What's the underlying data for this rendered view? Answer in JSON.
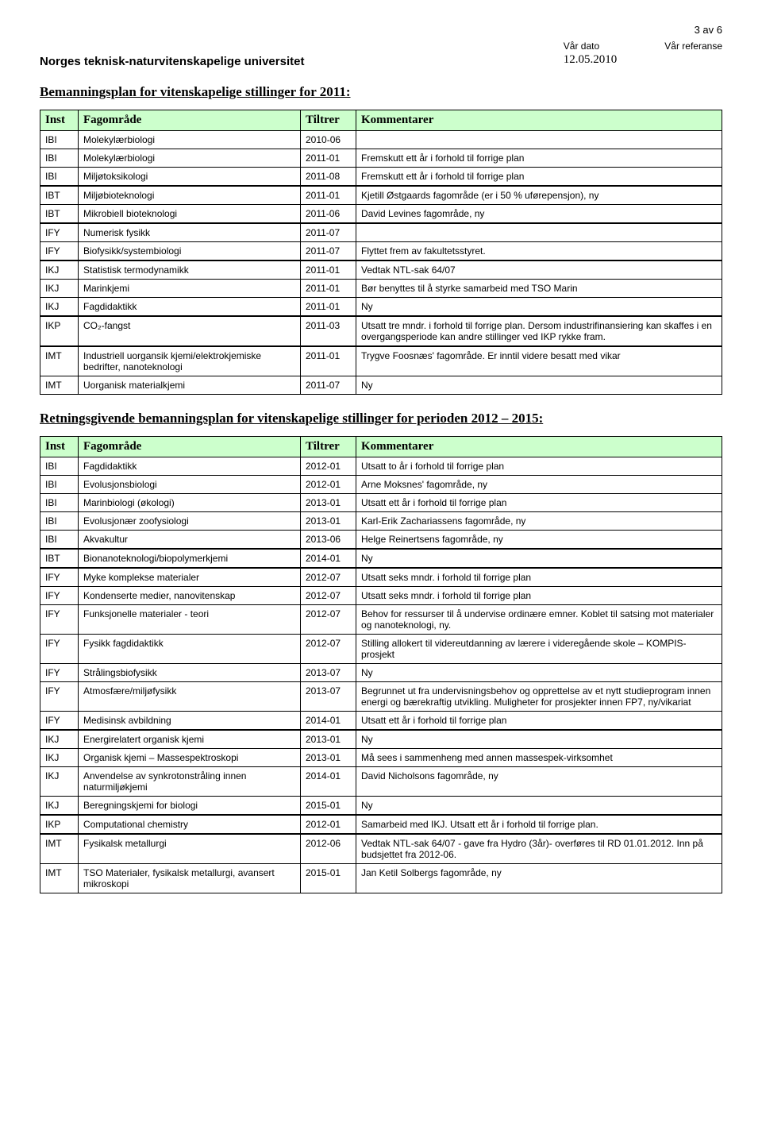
{
  "header": {
    "page_number": "3 av 6",
    "org_name": "Norges teknisk-naturvitenskapelige universitet",
    "date_label": "Vår dato",
    "date_value": "12.05.2010",
    "ref_label": "Vår referanse",
    "ref_value": ""
  },
  "section1": {
    "title": "Bemanningsplan for vitenskapelige stillinger for 2011:",
    "columns": [
      "Inst",
      "Fagområde",
      "Tiltrer",
      "Kommentarer"
    ],
    "groups": [
      [
        {
          "inst": "IBI",
          "fag": "Molekylærbiologi",
          "tiltrer": "2010-06",
          "komm": ""
        },
        {
          "inst": "IBI",
          "fag": "Molekylærbiologi",
          "tiltrer": "2011-01",
          "komm": "Fremskutt ett år i forhold til forrige plan"
        },
        {
          "inst": "IBI",
          "fag": "Miljøtoksikologi",
          "tiltrer": "2011-08",
          "komm": "Fremskutt ett år i forhold til forrige plan"
        }
      ],
      [
        {
          "inst": "IBT",
          "fag": "Miljøbioteknologi",
          "tiltrer": "2011-01",
          "komm": "Kjetill Østgaards fagområde (er i 50 % uførepensjon), ny"
        },
        {
          "inst": "IBT",
          "fag": "Mikrobiell bioteknologi",
          "tiltrer": "2011-06",
          "komm": "David Levines fagområde, ny"
        }
      ],
      [
        {
          "inst": "IFY",
          "fag": "Numerisk fysikk",
          "tiltrer": "2011-07",
          "komm": ""
        },
        {
          "inst": "IFY",
          "fag": "Biofysikk/systembiologi",
          "tiltrer": "2011-07",
          "komm": "Flyttet frem av fakultetsstyret."
        }
      ],
      [
        {
          "inst": "IKJ",
          "fag": "Statistisk termodynamikk",
          "tiltrer": "2011-01",
          "komm": "Vedtak NTL-sak 64/07"
        },
        {
          "inst": "IKJ",
          "fag": "Marinkjemi",
          "tiltrer": "2011-01",
          "komm": "Bør benyttes til å styrke samarbeid med TSO Marin"
        },
        {
          "inst": "IKJ",
          "fag": "Fagdidaktikk",
          "tiltrer": "2011-01",
          "komm": "Ny"
        }
      ],
      [
        {
          "inst": "IKP",
          "fag": "CO₂-fangst",
          "tiltrer": "2011-03",
          "komm": "Utsatt tre mndr. i forhold til forrige plan. Dersom industrifinansiering kan skaffes i en overgangsperiode kan andre stillinger ved IKP rykke fram."
        }
      ],
      [
        {
          "inst": "IMT",
          "fag": "Industriell uorgansik kjemi/elektrokjemiske bedrifter, nanoteknologi",
          "tiltrer": "2011-01",
          "komm": "Trygve Foosnæs' fagområde. Er inntil videre besatt med vikar"
        },
        {
          "inst": "IMT",
          "fag": "Uorganisk materialkjemi",
          "tiltrer": "2011-07",
          "komm": "Ny"
        }
      ]
    ]
  },
  "section2": {
    "title": "Retningsgivende bemanningsplan for vitenskapelige stillinger for perioden 2012 – 2015:",
    "columns": [
      "Inst",
      "Fagområde",
      "Tiltrer",
      "Kommentarer"
    ],
    "groups": [
      [
        {
          "inst": "IBI",
          "fag": "Fagdidaktikk",
          "tiltrer": "2012-01",
          "komm": "Utsatt to år i forhold til forrige plan"
        },
        {
          "inst": "IBI",
          "fag": "Evolusjonsbiologi",
          "tiltrer": "2012-01",
          "komm": "Arne Moksnes' fagområde, ny"
        },
        {
          "inst": "IBI",
          "fag": "Marinbiologi (økologi)",
          "tiltrer": "2013-01",
          "komm": "Utsatt ett år i forhold til forrige plan"
        },
        {
          "inst": "IBI",
          "fag": "Evolusjonær zoofysiologi",
          "tiltrer": "2013-01",
          "komm": "Karl-Erik Zachariassens fagområde, ny"
        },
        {
          "inst": "IBI",
          "fag": "Akvakultur",
          "tiltrer": "2013-06",
          "komm": "Helge Reinertsens fagområde, ny"
        }
      ],
      [
        {
          "inst": "IBT",
          "fag": "Bionanoteknologi/biopolymerkjemi",
          "tiltrer": "2014-01",
          "komm": "Ny"
        }
      ],
      [
        {
          "inst": "IFY",
          "fag": "Myke komplekse materialer",
          "tiltrer": "2012-07",
          "komm": "Utsatt seks mndr. i forhold til forrige plan"
        },
        {
          "inst": "IFY",
          "fag": "Kondenserte medier, nanovitenskap",
          "tiltrer": "2012-07",
          "komm": "Utsatt seks mndr. i forhold til forrige plan"
        },
        {
          "inst": "IFY",
          "fag": "Funksjonelle materialer - teori",
          "tiltrer": "2012-07",
          "komm": "Behov for ressurser til å undervise ordinære emner. Koblet til satsing mot materialer og nanoteknologi, ny."
        },
        {
          "inst": "IFY",
          "fag": "Fysikk fagdidaktikk",
          "tiltrer": "2012-07",
          "komm": "Stilling allokert til videreutdanning av lærere i videregående skole – KOMPIS-prosjekt"
        },
        {
          "inst": "IFY",
          "fag": "Strålingsbiofysikk",
          "tiltrer": "2013-07",
          "komm": "Ny"
        },
        {
          "inst": "IFY",
          "fag": "Atmosfære/miljøfysikk",
          "tiltrer": "2013-07",
          "komm": "Begrunnet ut fra undervisningsbehov og opprettelse av et nytt studieprogram innen energi og bærekraftig utvikling. Muligheter for prosjekter innen FP7, ny/vikariat"
        },
        {
          "inst": "IFY",
          "fag": "Medisinsk avbildning",
          "tiltrer": "2014-01",
          "komm": "Utsatt ett år i forhold til forrige plan"
        }
      ],
      [
        {
          "inst": "IKJ",
          "fag": "Energirelatert organisk kjemi",
          "tiltrer": "2013-01",
          "komm": "Ny"
        },
        {
          "inst": "IKJ",
          "fag": "Organisk kjemi – Massespektroskopi",
          "tiltrer": "2013-01",
          "komm": "Må sees i sammenheng med annen massespek-virksomhet"
        },
        {
          "inst": "IKJ",
          "fag": "Anvendelse av synkrotonstråling innen naturmiljøkjemi",
          "tiltrer": "2014-01",
          "komm": "David Nicholsons fagområde, ny"
        },
        {
          "inst": "IKJ",
          "fag": "Beregningskjemi for biologi",
          "tiltrer": "2015-01",
          "komm": "Ny"
        }
      ],
      [
        {
          "inst": "IKP",
          "fag": "Computational chemistry",
          "tiltrer": "2012-01",
          "komm": "Samarbeid med IKJ. Utsatt ett år i forhold til forrige plan."
        }
      ],
      [
        {
          "inst": "IMT",
          "fag": "Fysikalsk metallurgi",
          "tiltrer": "2012-06",
          "komm": "Vedtak NTL-sak 64/07 - gave fra Hydro (3år)- overføres til RD  01.01.2012. Inn på budsjettet fra 2012-06."
        },
        {
          "inst": "IMT",
          "fag": "TSO Materialer, fysikalsk metallurgi, avansert mikroskopi",
          "tiltrer": "2015-01",
          "komm": "Jan Ketil Solbergs fagområde, ny"
        }
      ]
    ]
  },
  "style": {
    "header_bg": "#ccffcc",
    "border_color": "#000000",
    "body_font_size": 12,
    "header_font_size": 15
  }
}
